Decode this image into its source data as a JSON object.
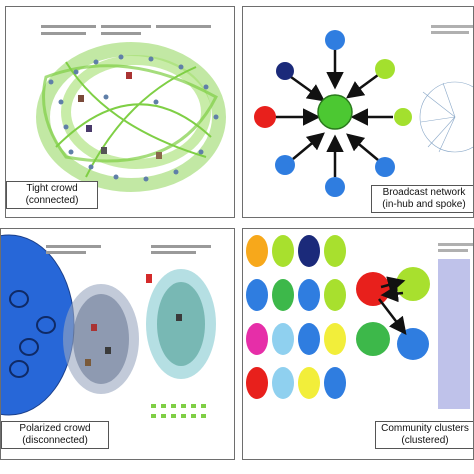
{
  "panels": [
    {
      "id": "tight",
      "caption_line1": "Tight crowd",
      "caption_line2": "(connected)"
    },
    {
      "id": "broadcast",
      "caption_line1": "Broadcast network",
      "caption_line2": "(in-hub and spoke)"
    },
    {
      "id": "polarized",
      "caption_line1": "Polarized crowd",
      "caption_line2": "(disconnected)"
    },
    {
      "id": "community",
      "caption_line1": "Community clusters",
      "caption_line2": "(clustered)"
    }
  ],
  "colors": {
    "hub": "#4cc832",
    "spoke_blue": "#2f7de0",
    "spoke_lime": "#a3e02e",
    "spoke_red": "#e8201c",
    "spoke_navy": "#1b2a7a",
    "big_blue": "#2767d8",
    "edge_green": "#8fd65a"
  },
  "community_grid": [
    [
      "#f7a81b",
      "#a8e02e",
      "#1b2a7a",
      "#a8e02e"
    ],
    [
      "#2f7de0",
      "#3db84a",
      "#2f7de0",
      "#a8e02e"
    ],
    [
      "#e62ea8",
      "#8fd0ef",
      "#2f7de0",
      "#f2ee3a"
    ],
    [
      "#e8201c",
      "#8fd0ef",
      "#f2ee3a",
      "#2f7de0"
    ]
  ]
}
